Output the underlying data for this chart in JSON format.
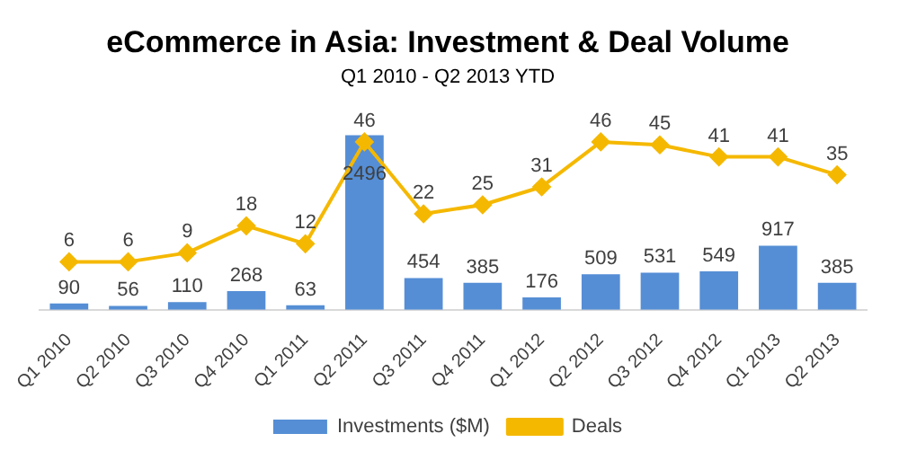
{
  "chart_data": {
    "type": "bar",
    "title": "eCommerce in Asia: Investment & Deal Volume",
    "subtitle": "Q1 2010 - Q2 2013 YTD",
    "categories": [
      "Q1 2010",
      "Q2 2010",
      "Q3 2010",
      "Q4 2010",
      "Q1 2011",
      "Q2 2011",
      "Q3 2011",
      "Q4 2011",
      "Q1 2012",
      "Q2 2012",
      "Q3 2012",
      "Q4 2012",
      "Q1 2013",
      "Q2 2013"
    ],
    "series": [
      {
        "name": "Investments ($M)",
        "color": "#558ed5",
        "values": [
          90,
          56,
          110,
          268,
          63,
          2496,
          454,
          385,
          176,
          509,
          531,
          549,
          917,
          385
        ]
      },
      {
        "name": "Deals",
        "type": "line",
        "axis": "y2",
        "color": "#f5b800",
        "values": [
          6,
          6,
          9,
          18,
          12,
          46,
          22,
          25,
          31,
          46,
          45,
          41,
          41,
          35
        ]
      }
    ],
    "data_labels": true,
    "legend": "bottom",
    "marker": "diamond",
    "grid": false,
    "tick_labels": "x"
  }
}
